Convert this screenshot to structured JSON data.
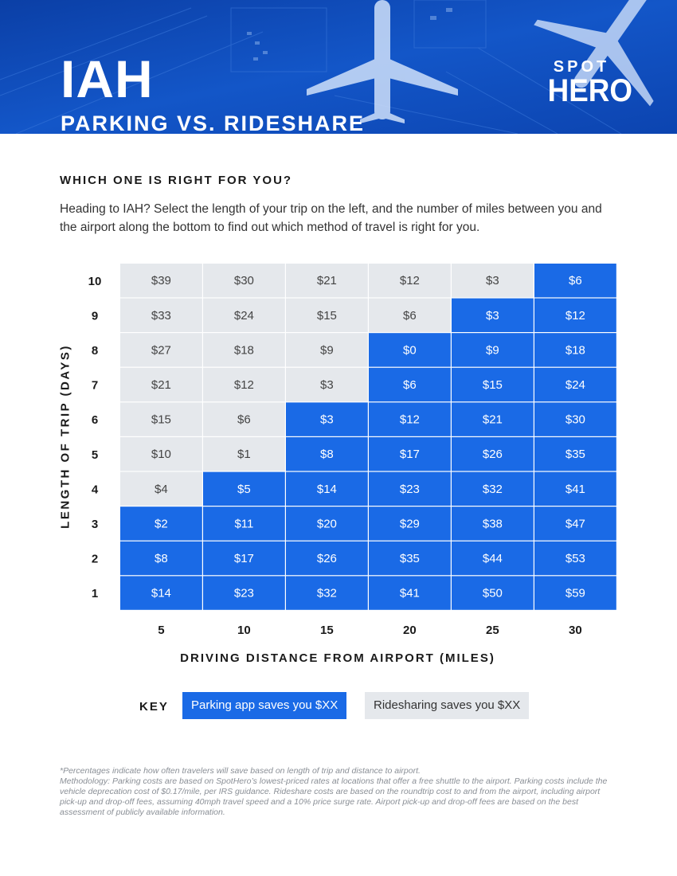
{
  "header": {
    "title": "IAH",
    "subtitle": "PARKING VS. RIDESHARE",
    "logo_top": "SPOT",
    "logo_bottom": "HERO",
    "background_color": "#0d47b8"
  },
  "question": "WHICH ONE IS RIGHT FOR YOU?",
  "intro": "Heading to IAH? Select the length of your trip on the left, and the number of miles between you and the airport along the bottom to find out which method of travel is right for you.",
  "key": {
    "label": "KEY",
    "parking": "Parking app saves you $XX",
    "rideshare": "Ridesharing saves you $XX"
  },
  "footnote": {
    "line1": "*Percentages indicate how often travelers will save based on length of trip and distance to airport.",
    "line2": "Methodology: Parking costs are based on SpotHero’s lowest-priced rates at locations that offer a free shuttle to the airport. Parking costs include the vehicle deprecation cost of $0.17/mile, per IRS guidance. Rideshare costs are based on the roundtrip cost to and from the airport, including airport pick-up and drop-off fees, assuming 40mph travel speed and a 10% price surge rate. Airport pick-up and drop-off fees are based on the best assessment of publicly available information."
  },
  "chart_data": {
    "type": "heatmap",
    "xlabel": "DRIVING DISTANCE FROM AIRPORT (MILES)",
    "ylabel": "LENGTH OF TRIP (DAYS)",
    "x": [
      "5",
      "10",
      "15",
      "20",
      "25",
      "30"
    ],
    "y": [
      "10",
      "9",
      "8",
      "7",
      "6",
      "5",
      "4",
      "3",
      "2",
      "1"
    ],
    "colors": {
      "parking": "#1a6ae6",
      "rideshare": "#e5e8ec",
      "parking_text": "#ffffff",
      "rideshare_text": "#444444"
    },
    "rows": [
      {
        "day": "10",
        "cells": [
          {
            "v": "$39",
            "w": "rideshare"
          },
          {
            "v": "$30",
            "w": "rideshare"
          },
          {
            "v": "$21",
            "w": "rideshare"
          },
          {
            "v": "$12",
            "w": "rideshare"
          },
          {
            "v": "$3",
            "w": "rideshare"
          },
          {
            "v": "$6",
            "w": "parking"
          }
        ]
      },
      {
        "day": "9",
        "cells": [
          {
            "v": "$33",
            "w": "rideshare"
          },
          {
            "v": "$24",
            "w": "rideshare"
          },
          {
            "v": "$15",
            "w": "rideshare"
          },
          {
            "v": "$6",
            "w": "rideshare"
          },
          {
            "v": "$3",
            "w": "parking"
          },
          {
            "v": "$12",
            "w": "parking"
          }
        ]
      },
      {
        "day": "8",
        "cells": [
          {
            "v": "$27",
            "w": "rideshare"
          },
          {
            "v": "$18",
            "w": "rideshare"
          },
          {
            "v": "$9",
            "w": "rideshare"
          },
          {
            "v": "$0",
            "w": "parking"
          },
          {
            "v": "$9",
            "w": "parking"
          },
          {
            "v": "$18",
            "w": "parking"
          }
        ]
      },
      {
        "day": "7",
        "cells": [
          {
            "v": "$21",
            "w": "rideshare"
          },
          {
            "v": "$12",
            "w": "rideshare"
          },
          {
            "v": "$3",
            "w": "rideshare"
          },
          {
            "v": "$6",
            "w": "parking"
          },
          {
            "v": "$15",
            "w": "parking"
          },
          {
            "v": "$24",
            "w": "parking"
          }
        ]
      },
      {
        "day": "6",
        "cells": [
          {
            "v": "$15",
            "w": "rideshare"
          },
          {
            "v": "$6",
            "w": "rideshare"
          },
          {
            "v": "$3",
            "w": "parking"
          },
          {
            "v": "$12",
            "w": "parking"
          },
          {
            "v": "$21",
            "w": "parking"
          },
          {
            "v": "$30",
            "w": "parking"
          }
        ]
      },
      {
        "day": "5",
        "cells": [
          {
            "v": "$10",
            "w": "rideshare"
          },
          {
            "v": "$1",
            "w": "rideshare"
          },
          {
            "v": "$8",
            "w": "parking"
          },
          {
            "v": "$17",
            "w": "parking"
          },
          {
            "v": "$26",
            "w": "parking"
          },
          {
            "v": "$35",
            "w": "parking"
          }
        ]
      },
      {
        "day": "4",
        "cells": [
          {
            "v": "$4",
            "w": "rideshare"
          },
          {
            "v": "$5",
            "w": "parking"
          },
          {
            "v": "$14",
            "w": "parking"
          },
          {
            "v": "$23",
            "w": "parking"
          },
          {
            "v": "$32",
            "w": "parking"
          },
          {
            "v": "$41",
            "w": "parking"
          }
        ]
      },
      {
        "day": "3",
        "cells": [
          {
            "v": "$2",
            "w": "parking"
          },
          {
            "v": "$11",
            "w": "parking"
          },
          {
            "v": "$20",
            "w": "parking"
          },
          {
            "v": "$29",
            "w": "parking"
          },
          {
            "v": "$38",
            "w": "parking"
          },
          {
            "v": "$47",
            "w": "parking"
          }
        ]
      },
      {
        "day": "2",
        "cells": [
          {
            "v": "$8",
            "w": "parking"
          },
          {
            "v": "$17",
            "w": "parking"
          },
          {
            "v": "$26",
            "w": "parking"
          },
          {
            "v": "$35",
            "w": "parking"
          },
          {
            "v": "$44",
            "w": "parking"
          },
          {
            "v": "$53",
            "w": "parking"
          }
        ]
      },
      {
        "day": "1",
        "cells": [
          {
            "v": "$14",
            "w": "parking"
          },
          {
            "v": "$23",
            "w": "parking"
          },
          {
            "v": "$32",
            "w": "parking"
          },
          {
            "v": "$41",
            "w": "parking"
          },
          {
            "v": "$50",
            "w": "parking"
          },
          {
            "v": "$59",
            "w": "parking"
          }
        ]
      }
    ]
  }
}
